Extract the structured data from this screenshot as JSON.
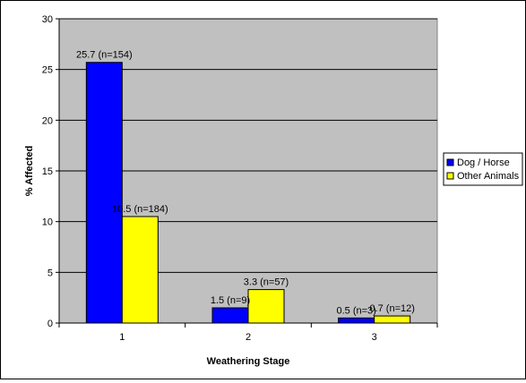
{
  "chart_data": {
    "type": "bar",
    "title": "",
    "xlabel": "Weathering Stage",
    "ylabel": "% Affected",
    "categories": [
      "1",
      "2",
      "3"
    ],
    "ylim": [
      0,
      30
    ],
    "yticks": [
      0,
      5,
      10,
      15,
      20,
      25,
      30
    ],
    "grid": true,
    "legend_position": "right",
    "series": [
      {
        "name": "Dog / Horse",
        "color": "#0000ff",
        "values": [
          25.7,
          1.5,
          0.5
        ],
        "labels": [
          "25.7 (n=154)",
          "1.5 (n=9)",
          "0.5 (n=3)"
        ]
      },
      {
        "name": "Other Animals",
        "color": "#ffff00",
        "values": [
          10.5,
          3.3,
          0.7
        ],
        "labels": [
          "10.5 (n=184)",
          "3.3 (n=57)",
          "0.7 (n=12)"
        ]
      }
    ],
    "plot_background": "#c0c0c0"
  }
}
